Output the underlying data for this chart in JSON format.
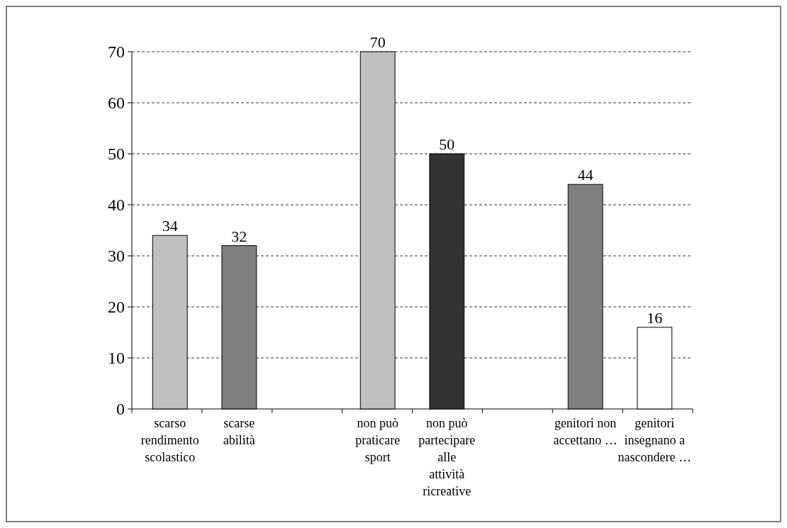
{
  "chart_data": {
    "type": "bar",
    "categories": [
      "scarso rendimento scolastico",
      "scarse abilità",
      null,
      "non può praticare sport",
      "non può partecipare alle attività ricreative",
      null,
      "genitori non accettano …",
      "genitori insegnano a nascondere …"
    ],
    "values": [
      34,
      32,
      null,
      70,
      50,
      null,
      44,
      16
    ],
    "colors": [
      "#c0c0c0",
      "#808080",
      null,
      "#c0c0c0",
      "#333333",
      null,
      "#808080",
      "#ffffff"
    ],
    "ylim": [
      0,
      70
    ],
    "yticks": [
      0,
      10,
      20,
      30,
      40,
      50,
      60,
      70
    ],
    "grid": "y",
    "data_labels": true
  }
}
